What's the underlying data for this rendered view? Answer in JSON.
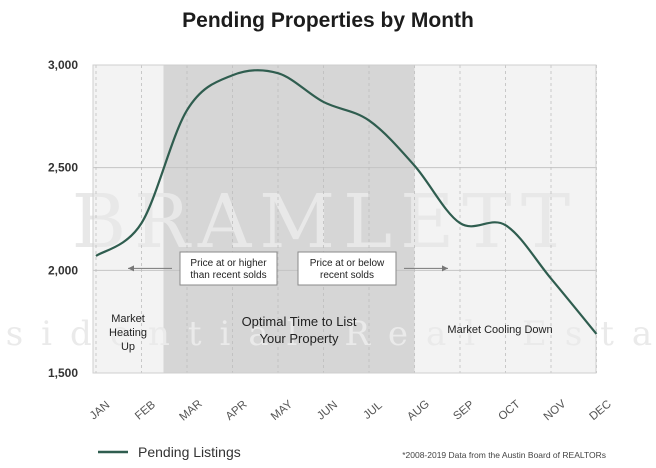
{
  "chart_data": {
    "type": "line",
    "title": "Pending Properties by Month",
    "categories": [
      "JAN",
      "FEB",
      "MAR",
      "APR",
      "MAY",
      "JUN",
      "JUL",
      "AUG",
      "SEP",
      "OCT",
      "NOV",
      "DEC"
    ],
    "series": [
      {
        "name": "Pending Listings",
        "color": "#2f5d4f",
        "values": [
          2070,
          2230,
          2780,
          2950,
          2960,
          2820,
          2730,
          2510,
          2230,
          2220,
          1960,
          1690
        ]
      }
    ],
    "y_ticks": [
      "1,500",
      "2,000",
      "2,500",
      "3,000"
    ],
    "ylim": [
      1500,
      3000
    ],
    "grid": true,
    "legend": "bottom-left",
    "regions": [
      {
        "label": "Market Heating Up",
        "lines": [
          "Market",
          "Heating",
          "Up"
        ],
        "from": "JAN",
        "to": "FEB",
        "shade": "#f3f3f3"
      },
      {
        "label": "Optimal Time to List Your Property",
        "lines": [
          "Optimal Time to List",
          "Your Property"
        ],
        "from": "MAR",
        "to": "AUG",
        "shade": "#d6d6d6"
      },
      {
        "label": "Market Cooling Down",
        "lines": [
          "Market Cooling Down"
        ],
        "from": "AUG",
        "to": "DEC",
        "shade": "#f3f3f3"
      }
    ],
    "annotations": [
      {
        "lines": [
          "Price at or higher",
          "than recent solds"
        ],
        "arrow": "left"
      },
      {
        "lines": [
          "Price at or below",
          "recent solds"
        ],
        "arrow": "right"
      }
    ],
    "watermark": {
      "big": "BRAMLETT",
      "small": "Residential Real Estate"
    },
    "source_note": "*2008-2019 Data from the Austin Board of REALTORs"
  }
}
